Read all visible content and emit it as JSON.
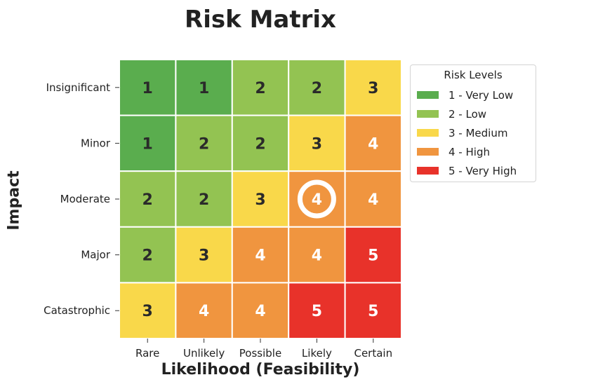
{
  "chart_data": {
    "type": "heatmap",
    "title": "Risk Matrix",
    "xlabel": "Likelihood (Feasibility)",
    "ylabel": "Impact",
    "x_categories": [
      "Rare",
      "Unlikely",
      "Possible",
      "Likely",
      "Certain"
    ],
    "y_categories": [
      "Insignificant",
      "Minor",
      "Moderate",
      "Major",
      "Catastrophic"
    ],
    "values": [
      [
        1,
        1,
        2,
        2,
        3
      ],
      [
        1,
        2,
        2,
        3,
        4
      ],
      [
        2,
        2,
        3,
        4,
        4
      ],
      [
        2,
        3,
        4,
        4,
        5
      ],
      [
        3,
        4,
        4,
        5,
        5
      ]
    ],
    "level_colors": {
      "1": "#5aad4e",
      "2": "#93c352",
      "3": "#f9d84a",
      "4": "#f0953f",
      "5": "#e8322a"
    },
    "highlighted_cell": {
      "impact": "Moderate",
      "likelihood": "Likely"
    },
    "legend": {
      "title": "Risk Levels",
      "placement": "right",
      "items": [
        {
          "label": "1 - Very Low",
          "color": "#5aad4e"
        },
        {
          "label": "2 - Low",
          "color": "#93c352"
        },
        {
          "label": "3 - Medium",
          "color": "#f9d84a"
        },
        {
          "label": "4 - High",
          "color": "#f0953f"
        },
        {
          "label": "5 - Very High",
          "color": "#e8322a"
        }
      ]
    }
  }
}
